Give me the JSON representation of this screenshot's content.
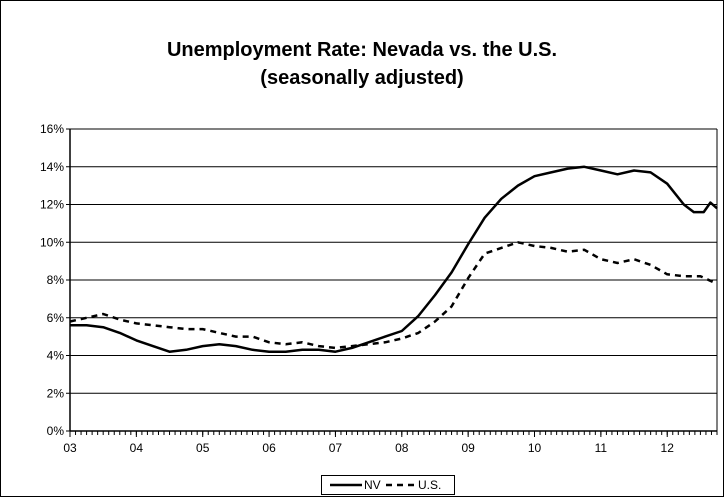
{
  "chart_data": {
    "type": "line",
    "title_line1": "Unemployment Rate:  Nevada vs. the U.S.",
    "title_line2": "(seasonally adjusted)",
    "xlabel": "",
    "ylabel": "",
    "y_ticks": [
      "0%",
      "2%",
      "4%",
      "6%",
      "8%",
      "10%",
      "12%",
      "14%",
      "16%"
    ],
    "ylim": [
      0,
      16
    ],
    "x_ticks": [
      "03",
      "04",
      "05",
      "06",
      "07",
      "08",
      "09",
      "10",
      "11",
      "12"
    ],
    "xlim": [
      2003.0,
      2012.75
    ],
    "grid": "horizontal",
    "legend_position": "bottom",
    "series": [
      {
        "name": "NV",
        "style": "solid",
        "color": "#000000",
        "x": [
          2003.0,
          2003.25,
          2003.5,
          2003.75,
          2004.0,
          2004.25,
          2004.5,
          2004.75,
          2005.0,
          2005.25,
          2005.5,
          2005.75,
          2006.0,
          2006.25,
          2006.5,
          2006.75,
          2007.0,
          2007.25,
          2007.5,
          2007.75,
          2008.0,
          2008.25,
          2008.5,
          2008.75,
          2009.0,
          2009.25,
          2009.5,
          2009.75,
          2010.0,
          2010.25,
          2010.5,
          2010.75,
          2011.0,
          2011.25,
          2011.5,
          2011.75,
          2012.0,
          2012.25,
          2012.4,
          2012.55,
          2012.65,
          2012.75
        ],
        "y": [
          5.6,
          5.6,
          5.5,
          5.2,
          4.8,
          4.5,
          4.2,
          4.3,
          4.5,
          4.6,
          4.5,
          4.3,
          4.2,
          4.2,
          4.3,
          4.3,
          4.2,
          4.4,
          4.7,
          5.0,
          5.3,
          6.1,
          7.2,
          8.4,
          9.9,
          11.3,
          12.3,
          13.0,
          13.5,
          13.7,
          13.9,
          14.0,
          13.8,
          13.6,
          13.8,
          13.7,
          13.1,
          12.0,
          11.6,
          11.6,
          12.1,
          11.8
        ]
      },
      {
        "name": "U.S.",
        "style": "dashed",
        "color": "#000000",
        "x": [
          2003.0,
          2003.25,
          2003.5,
          2003.75,
          2004.0,
          2004.25,
          2004.5,
          2004.75,
          2005.0,
          2005.25,
          2005.5,
          2005.75,
          2006.0,
          2006.25,
          2006.5,
          2006.75,
          2007.0,
          2007.25,
          2007.5,
          2007.75,
          2008.0,
          2008.25,
          2008.5,
          2008.75,
          2009.0,
          2009.25,
          2009.5,
          2009.75,
          2010.0,
          2010.25,
          2010.5,
          2010.75,
          2011.0,
          2011.25,
          2011.5,
          2011.75,
          2012.0,
          2012.25,
          2012.5,
          2012.75
        ],
        "y": [
          5.8,
          6.0,
          6.2,
          5.9,
          5.7,
          5.6,
          5.5,
          5.4,
          5.4,
          5.2,
          5.0,
          5.0,
          4.7,
          4.6,
          4.7,
          4.5,
          4.4,
          4.5,
          4.6,
          4.7,
          4.9,
          5.2,
          5.8,
          6.6,
          8.1,
          9.4,
          9.7,
          10.0,
          9.8,
          9.7,
          9.5,
          9.6,
          9.1,
          8.9,
          9.1,
          8.8,
          8.3,
          8.2,
          8.2,
          7.8
        ]
      }
    ]
  }
}
